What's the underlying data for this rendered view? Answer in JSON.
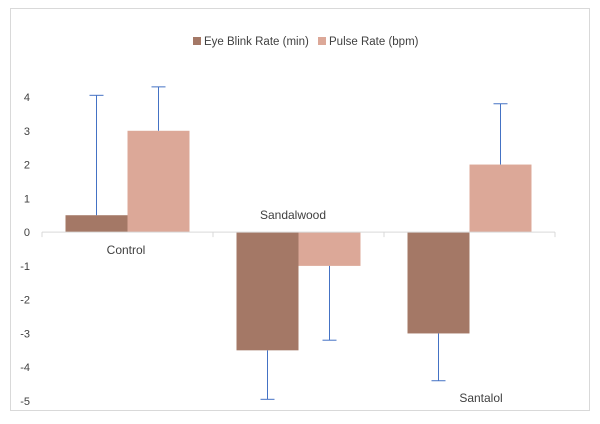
{
  "chart_data": {
    "type": "bar",
    "categories": [
      "Control",
      "Sandalwood",
      "Santalol"
    ],
    "series": [
      {
        "name": "Eye Blink Rate (min)",
        "color": "#a47866",
        "values": [
          0.5,
          -3.5,
          -3.0
        ],
        "error_upper": [
          4.05,
          null,
          null
        ],
        "error_lower": [
          null,
          -4.95,
          -4.4
        ]
      },
      {
        "name": "Pulse Rate (bpm)",
        "color": "#dca898",
        "values": [
          3.0,
          -1.0,
          2.0
        ],
        "error_upper": [
          4.3,
          null,
          3.8
        ],
        "error_lower": [
          null,
          -3.2,
          null
        ]
      }
    ],
    "ylim": [
      -5,
      4
    ],
    "yticks": [
      4,
      3,
      2,
      1,
      0,
      -1,
      -2,
      -3,
      -4,
      -5
    ],
    "legend_position": "top",
    "grid": false,
    "error_bar_color": "#4472c4",
    "axis_color": "#d9d9d9"
  }
}
